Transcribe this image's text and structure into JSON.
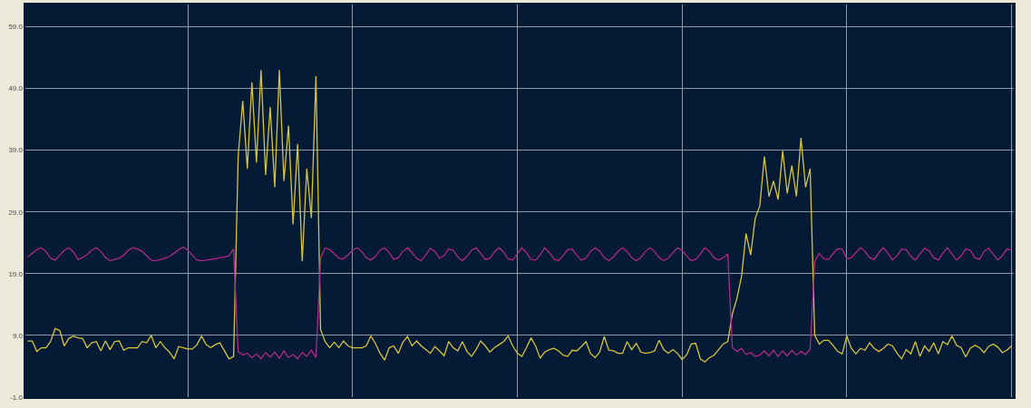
{
  "chart_data": {
    "type": "line",
    "categories": [
      null,
      null,
      null,
      null,
      null,
      null,
      null,
      null,
      null,
      null,
      null,
      null,
      null,
      null,
      null,
      null,
      null,
      null,
      null,
      null,
      null,
      null,
      null,
      null,
      null,
      null,
      null,
      null,
      null,
      null,
      null,
      null,
      null,
      null,
      null,
      null,
      null,
      null,
      null,
      null,
      null,
      null,
      null,
      null,
      null,
      null,
      null,
      null,
      null,
      null,
      null,
      null,
      null,
      null,
      null,
      null,
      null,
      null,
      null,
      null,
      null,
      null,
      null,
      null,
      null,
      null,
      null,
      null,
      null,
      null,
      null,
      null,
      null,
      null,
      null,
      null,
      null,
      null,
      null,
      null,
      null,
      null,
      null,
      null,
      null,
      null,
      null,
      null,
      null,
      null,
      null,
      null,
      null,
      null,
      null,
      null,
      null,
      null,
      null,
      null,
      null,
      null,
      null,
      null,
      null,
      null,
      null,
      null,
      null,
      null,
      null,
      null,
      null,
      null,
      null,
      null,
      null,
      null,
      null,
      null,
      null,
      null,
      null,
      null,
      null,
      null,
      null,
      null,
      null,
      null,
      null,
      null,
      null,
      null,
      null,
      null,
      null,
      null,
      null,
      null,
      null,
      null,
      null,
      null,
      null,
      null,
      null,
      null,
      null,
      null,
      null,
      null,
      null,
      null,
      null,
      null,
      null,
      null,
      null,
      null,
      null,
      null,
      null,
      null,
      null,
      null,
      null,
      null,
      null,
      null,
      null,
      null,
      null,
      null,
      null,
      null,
      null,
      null,
      null,
      null,
      null,
      null,
      null,
      null,
      null,
      null,
      null,
      null,
      null,
      null,
      null,
      null,
      null,
      null,
      null,
      null,
      null,
      null,
      null,
      null,
      null,
      null,
      null,
      null,
      null,
      null,
      null,
      null,
      null,
      null,
      null,
      null,
      null,
      null,
      null,
      null
    ],
    "series": [
      {
        "color": "#d6c43a",
        "values": [
          8.1,
          8.1,
          6.4,
          7.0,
          7.0,
          8.0,
          10.1,
          9.8,
          7.3,
          8.5,
          8.9,
          8.6,
          8.5,
          7.0,
          7.8,
          8.0,
          6.5,
          8.1,
          6.7,
          8.0,
          8.1,
          6.6,
          7.0,
          7.0,
          7.0,
          8.0,
          7.8,
          9.0,
          7.0,
          8.0,
          7.0,
          6.3,
          5.2,
          7.2,
          7.0,
          6.8,
          6.8,
          7.5,
          8.9,
          7.5,
          7.0,
          7.5,
          7.8,
          6.5,
          5.2,
          5.6,
          38,
          47,
          36,
          50,
          37,
          52,
          35,
          46,
          33,
          52,
          34,
          43,
          27,
          40,
          21,
          36,
          28,
          51,
          10.0,
          8.0,
          7.0,
          7.9,
          7.0,
          8.1,
          7.3,
          7.0,
          7.0,
          7.0,
          7.3,
          8.9,
          7.7,
          6.1,
          5.0,
          7.0,
          7.3,
          6.1,
          7.9,
          8.8,
          7.3,
          8.1,
          7.3,
          6.7,
          6.1,
          7.2,
          6.5,
          5.7,
          8.0,
          7.0,
          6.5,
          8.0,
          6.4,
          5.6,
          6.7,
          8.1,
          7.3,
          6.3,
          7.0,
          7.5,
          8.0,
          8.9,
          7.3,
          6.1,
          5.6,
          7.0,
          8.6,
          7.3,
          5.3,
          6.3,
          6.7,
          6.9,
          6.5,
          5.8,
          5.6,
          6.6,
          6.5,
          7.2,
          8.0,
          6.1,
          5.4,
          6.3,
          8.8,
          6.6,
          6.5,
          6.1,
          6.1,
          8.0,
          6.7,
          7.7,
          6.3,
          6.1,
          6.2,
          6.5,
          8.2,
          6.7,
          6.1,
          6.7,
          6.1,
          5.1,
          5.8,
          7.6,
          7.7,
          5.2,
          4.7,
          5.4,
          5.8,
          6.7,
          7.6,
          8.0,
          12.5,
          15.0,
          18.5,
          25.5,
          22.0,
          28.0,
          30.0,
          38.0,
          31.5,
          34.0,
          31.0,
          38.9,
          32.0,
          36.5,
          31.5,
          41.0,
          33.0,
          36.0,
          9.0,
          7.6,
          8.2,
          8.2,
          7.4,
          6.4,
          6.0,
          8.9,
          6.9,
          6.0,
          6.9,
          6.6,
          7.8,
          6.9,
          6.4,
          6.9,
          7.6,
          7.3,
          6.1,
          5.2,
          6.7,
          6.0,
          8.0,
          5.6,
          7.3,
          6.4,
          7.8,
          6.0,
          8.0,
          7.5,
          8.9,
          7.4,
          7.0,
          5.5,
          6.9,
          7.4,
          7.0,
          6.2,
          7.2,
          7.6,
          7.1,
          6.2,
          6.6,
          7.3
        ]
      },
      {
        "color": "#b0288a",
        "values": [
          21.7,
          22.3,
          22.9,
          23.2,
          22.6,
          21.5,
          21.2,
          22.0,
          22.8,
          23.2,
          22.5,
          21.3,
          21.6,
          22.1,
          22.8,
          23.2,
          22.6,
          21.6,
          21.1,
          21.3,
          21.5,
          22.0,
          22.8,
          23.2,
          23.0,
          22.6,
          21.9,
          21.2,
          21.1,
          21.3,
          21.5,
          21.8,
          22.3,
          22.9,
          23.3,
          22.8,
          22.0,
          21.2,
          21.1,
          21.2,
          21.3,
          21.4,
          21.6,
          21.7,
          21.9,
          23.0,
          6.4,
          5.8,
          6.1,
          5.4,
          6.0,
          5.2,
          6.2,
          5.5,
          6.3,
          5.3,
          6.5,
          5.4,
          5.9,
          5.2,
          6.2,
          5.6,
          6.6,
          5.4,
          21.5,
          23.2,
          22.9,
          22.2,
          21.5,
          21.4,
          22.0,
          22.8,
          23.2,
          22.6,
          21.6,
          21.2,
          21.8,
          22.8,
          23.2,
          22.4,
          21.3,
          21.6,
          22.6,
          23.2,
          22.4,
          21.5,
          21.1,
          22.0,
          23.1,
          22.6,
          21.5,
          21.9,
          23.0,
          22.8,
          21.7,
          21.1,
          21.8,
          22.8,
          23.2,
          22.3,
          21.3,
          21.5,
          22.5,
          23.2,
          22.5,
          21.4,
          21.2,
          22.2,
          23.2,
          22.4,
          21.3,
          21.2,
          22.0,
          23.2,
          22.4,
          21.4,
          21.1,
          21.9,
          22.9,
          23.0,
          22.0,
          21.2,
          21.5,
          22.6,
          23.2,
          22.7,
          21.6,
          21.1,
          21.7,
          22.6,
          23.2,
          22.6,
          21.6,
          21.1,
          21.6,
          22.6,
          23.2,
          22.6,
          21.6,
          21.1,
          21.5,
          22.4,
          23.2,
          22.8,
          21.9,
          21.1,
          21.3,
          22.2,
          23.2,
          22.6,
          21.6,
          21.2,
          21.6,
          22.2,
          7.0,
          6.4,
          6.9,
          5.9,
          6.2,
          5.6,
          5.8,
          6.5,
          5.7,
          6.6,
          5.6,
          6.5,
          5.7,
          6.6,
          5.8,
          6.4,
          5.9,
          6.8,
          21.0,
          22.3,
          21.4,
          21.3,
          22.2,
          23.0,
          23.0,
          21.4,
          21.6,
          22.4,
          23.2,
          22.6,
          21.6,
          21.3,
          22.4,
          23.2,
          22.3,
          21.2,
          21.9,
          23.0,
          22.9,
          21.8,
          21.2,
          22.2,
          23.1,
          22.7,
          21.6,
          21.2,
          22.3,
          23.2,
          22.2,
          21.2,
          21.9,
          23.0,
          22.8,
          21.6,
          21.3,
          22.6,
          23.1,
          22.2,
          21.2,
          21.9,
          23.0,
          22.8
        ]
      }
    ],
    "ylim": [
      -1,
      62.6
    ],
    "yticks": [
      {
        "value": -1,
        "label": "-1.0"
      },
      {
        "value": 9,
        "label": "9.0"
      },
      {
        "value": 19,
        "label": "19.0"
      },
      {
        "value": 29,
        "label": "29.0"
      },
      {
        "value": 39,
        "label": "39.0"
      },
      {
        "value": 49,
        "label": "49.0"
      },
      {
        "value": 59,
        "label": "59.0"
      }
    ],
    "grid": true
  }
}
